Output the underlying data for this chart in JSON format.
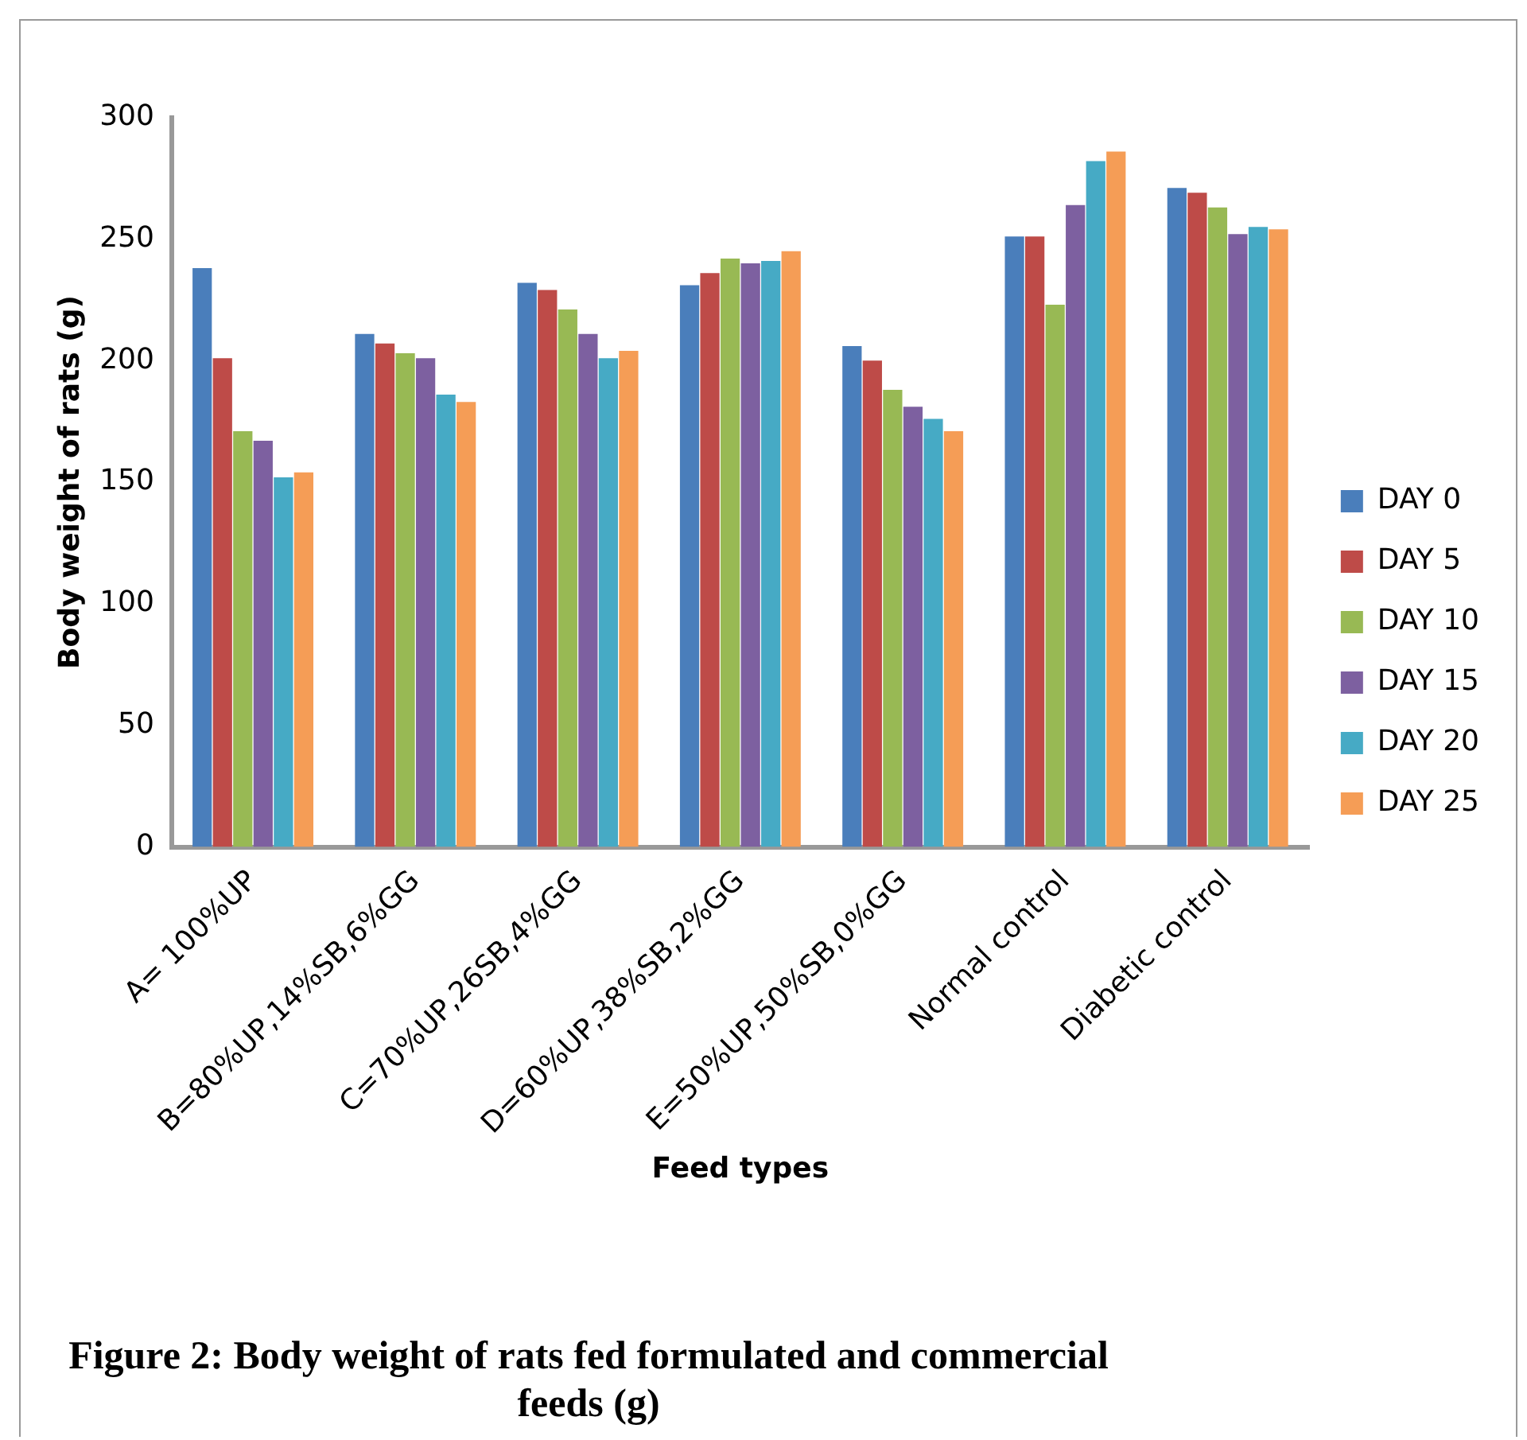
{
  "chart_data": {
    "type": "bar",
    "xlabel": "Feed types",
    "ylabel": "Body weight of rats (g)",
    "categories": [
      "A= 100%UP",
      "B=80%UP,14%SB,6%GG",
      "C=70%UP,26SB,4%GG",
      "D=60%UP,38%SB,2%GG",
      "E=50%UP,50%SB,0%GG",
      "Normal control",
      "Diabetic control"
    ],
    "series": [
      {
        "name": "DAY 0",
        "color": "#4a7ebb",
        "values": [
          238,
          211,
          232,
          231,
          206,
          251,
          271
        ]
      },
      {
        "name": "DAY 5",
        "color": "#be4b48",
        "values": [
          201,
          207,
          229,
          236,
          200,
          251,
          269
        ]
      },
      {
        "name": "DAY 10",
        "color": "#98b954",
        "values": [
          171,
          203,
          221,
          242,
          188,
          223,
          263
        ]
      },
      {
        "name": "DAY 15",
        "color": "#7d60a0",
        "values": [
          167,
          201,
          211,
          240,
          181,
          264,
          252
        ]
      },
      {
        "name": "DAY 20",
        "color": "#46aac5",
        "values": [
          152,
          186,
          201,
          241,
          176,
          282,
          255
        ]
      },
      {
        "name": "DAY 25",
        "color": "#f59d56",
        "values": [
          154,
          183,
          204,
          245,
          171,
          286,
          254
        ]
      }
    ],
    "ylim": [
      0,
      300
    ],
    "yticks": [
      0,
      50,
      100,
      150,
      200,
      250,
      300
    ],
    "grid": false,
    "legend": "right",
    "annotations": [
      "Figure 2: Body weight of rats fed formulated and commercial feeds (g)"
    ]
  }
}
